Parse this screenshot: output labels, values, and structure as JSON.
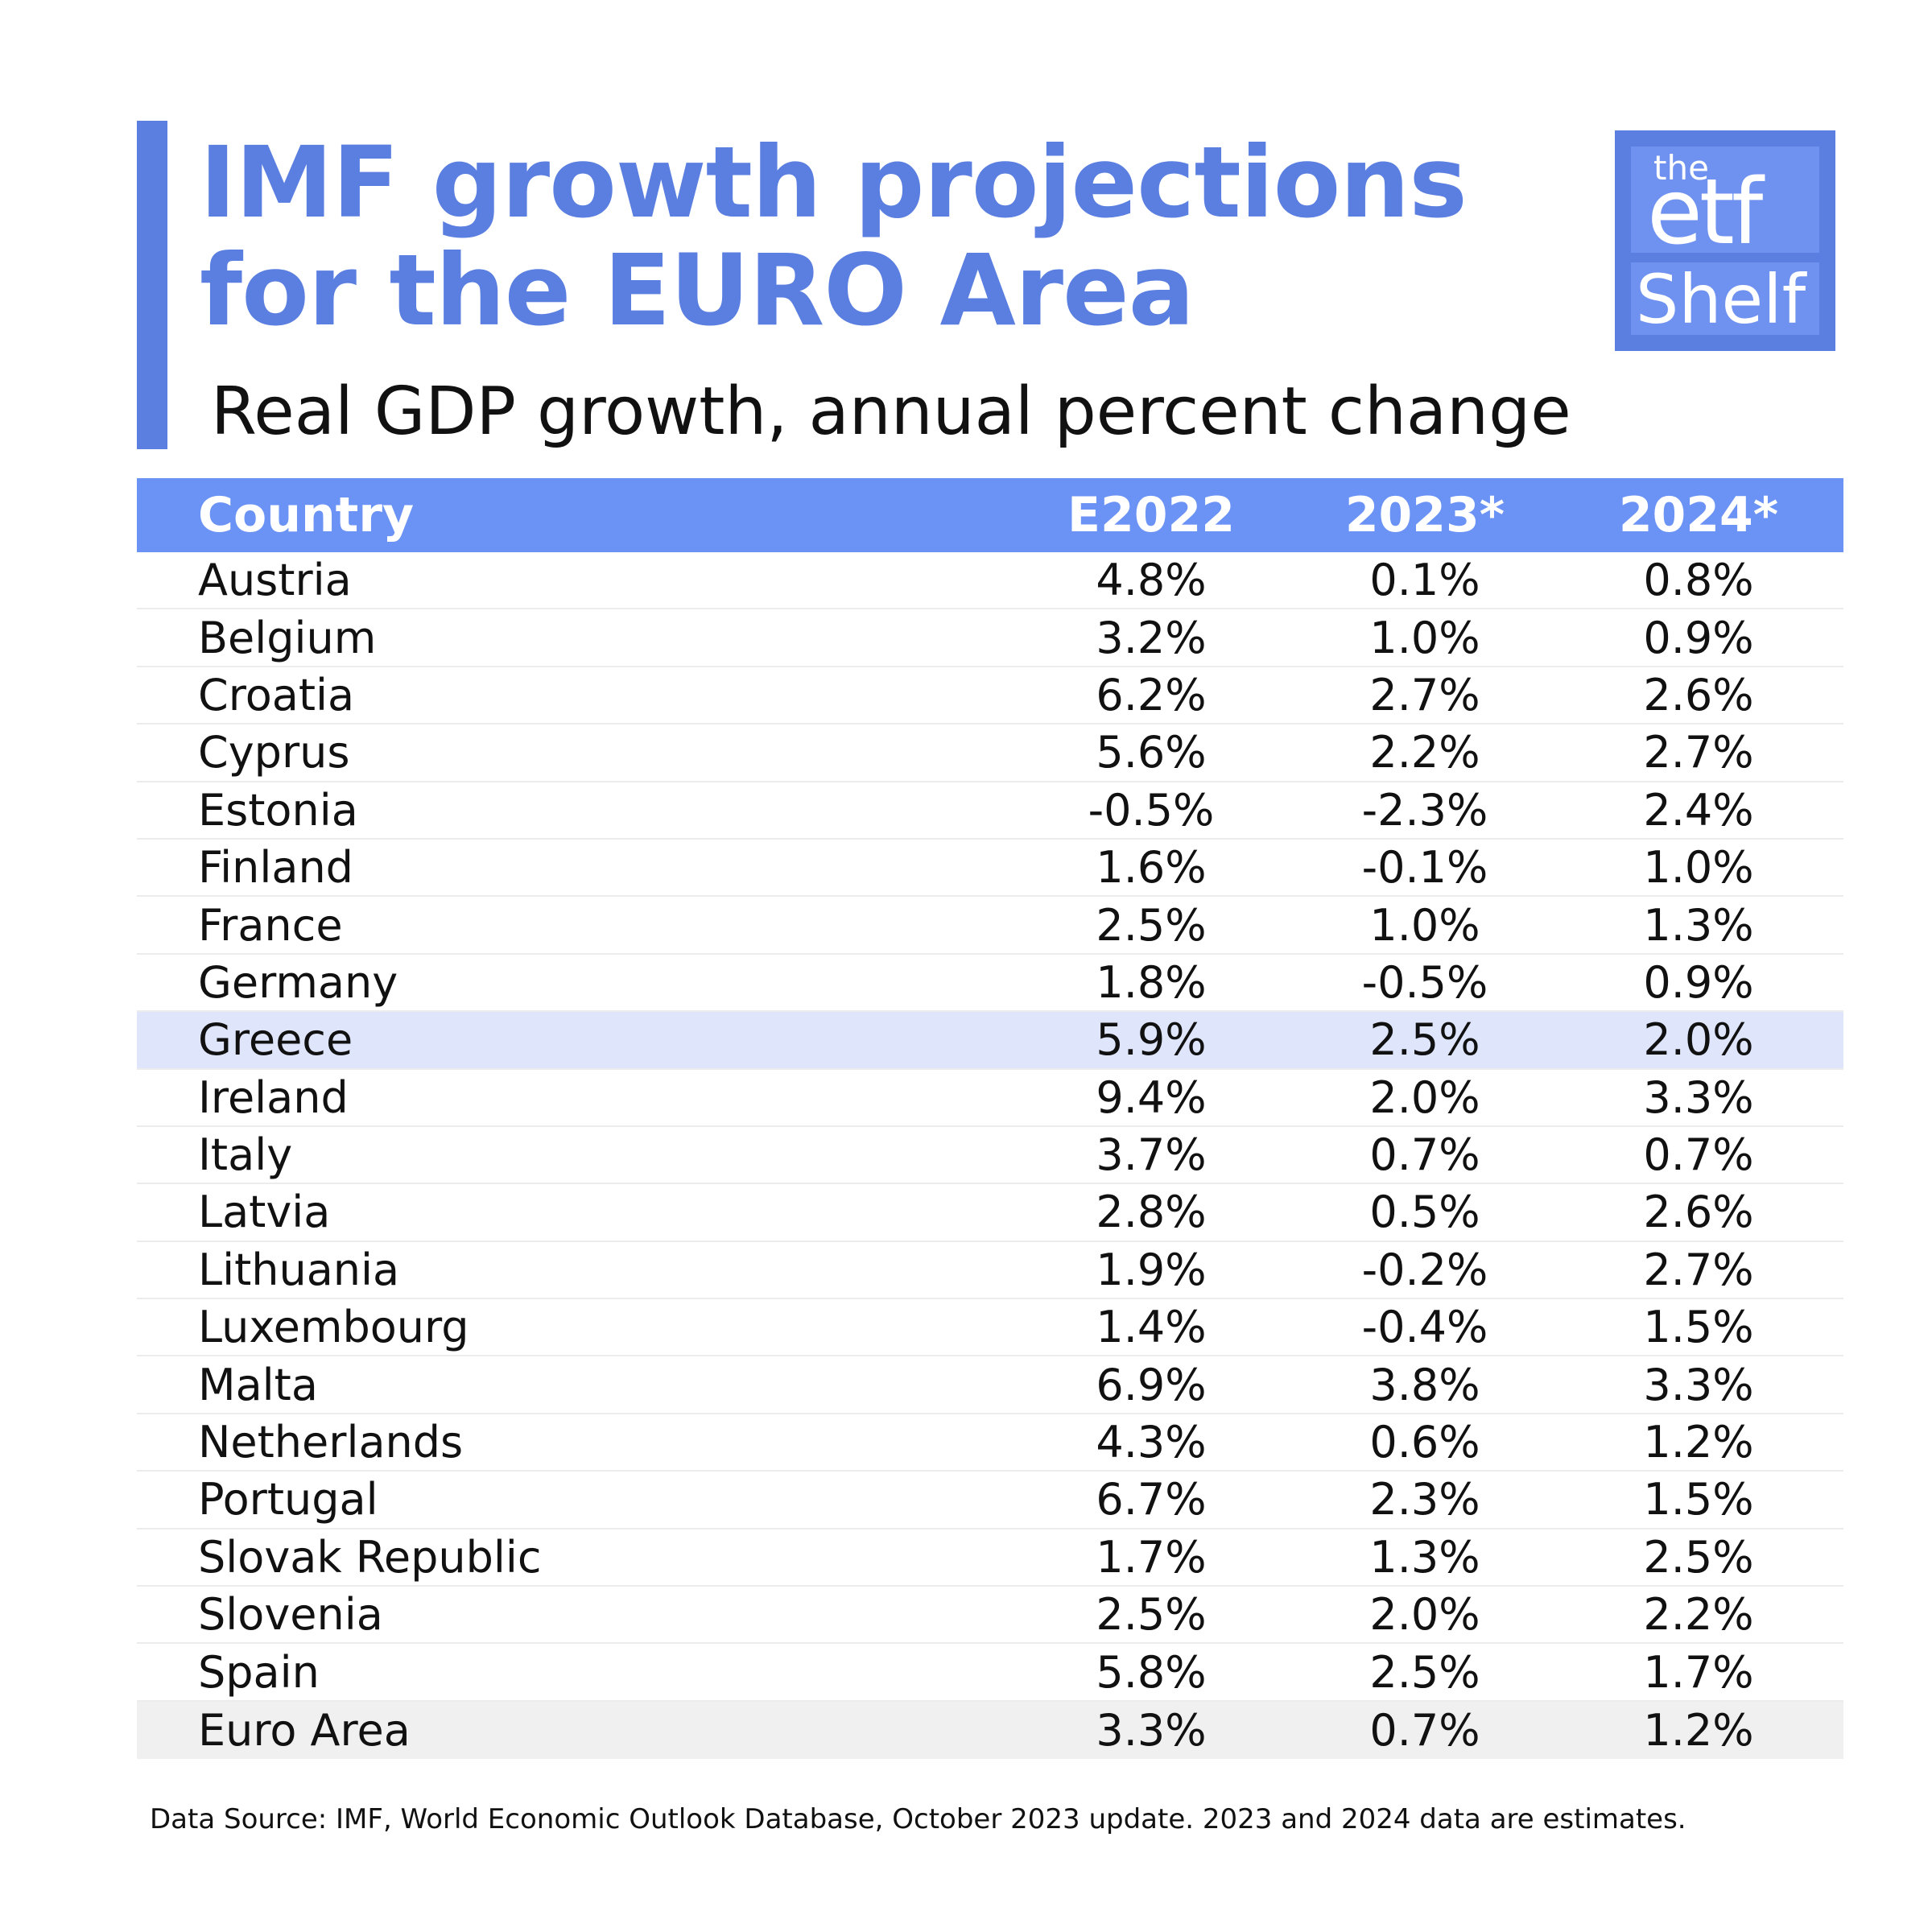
{
  "header": {
    "title_line1": "IMF growth projections",
    "title_line2": "for the EURO Area",
    "subtitle": "Real GDP growth, annual percent change"
  },
  "logo": {
    "the": "the",
    "etf": "etf",
    "shelf": "Shelf",
    "color": "#5a7fe0"
  },
  "colors": {
    "accent": "#5a7fe0",
    "header_bg": "#6b93f5",
    "highlight_row": "#dfe6fb",
    "total_row": "#f0f0f0"
  },
  "chart_data": {
    "type": "table",
    "columns": [
      "Country",
      "E2022",
      "2023*",
      "2024*"
    ],
    "rows": [
      [
        "Austria",
        "4.8%",
        "0.1%",
        "0.8%"
      ],
      [
        "Belgium",
        "3.2%",
        "1.0%",
        "0.9%"
      ],
      [
        "Croatia",
        "6.2%",
        "2.7%",
        "2.6%"
      ],
      [
        "Cyprus",
        "5.6%",
        "2.2%",
        "2.7%"
      ],
      [
        "Estonia",
        "-0.5%",
        "-2.3%",
        "2.4%"
      ],
      [
        "Finland",
        "1.6%",
        "-0.1%",
        "1.0%"
      ],
      [
        "France",
        "2.5%",
        "1.0%",
        "1.3%"
      ],
      [
        "Germany",
        "1.8%",
        "-0.5%",
        "0.9%"
      ],
      [
        "Greece",
        "5.9%",
        "2.5%",
        "2.0%"
      ],
      [
        "Ireland",
        "9.4%",
        "2.0%",
        "3.3%"
      ],
      [
        "Italy",
        "3.7%",
        "0.7%",
        "0.7%"
      ],
      [
        "Latvia",
        "2.8%",
        "0.5%",
        "2.6%"
      ],
      [
        "Lithuania",
        "1.9%",
        "-0.2%",
        "2.7%"
      ],
      [
        "Luxembourg",
        "1.4%",
        "-0.4%",
        "1.5%"
      ],
      [
        "Malta",
        "6.9%",
        "3.8%",
        "3.3%"
      ],
      [
        "Netherlands",
        "4.3%",
        "0.6%",
        "1.2%"
      ],
      [
        "Portugal",
        "6.7%",
        "2.3%",
        "1.5%"
      ],
      [
        "Slovak Republic",
        "1.7%",
        "1.3%",
        "2.5%"
      ],
      [
        "Slovenia",
        "2.5%",
        "2.0%",
        "2.2%"
      ],
      [
        "Spain",
        "5.8%",
        "2.5%",
        "1.7%"
      ],
      [
        "Euro Area",
        "3.3%",
        "0.7%",
        "1.2%"
      ]
    ],
    "highlighted_row": "Greece",
    "total_row": "Euro Area"
  },
  "footnote": "Data Source: IMF, World Economic Outlook Database, October 2023 update. 2023 and 2024 data are estimates."
}
